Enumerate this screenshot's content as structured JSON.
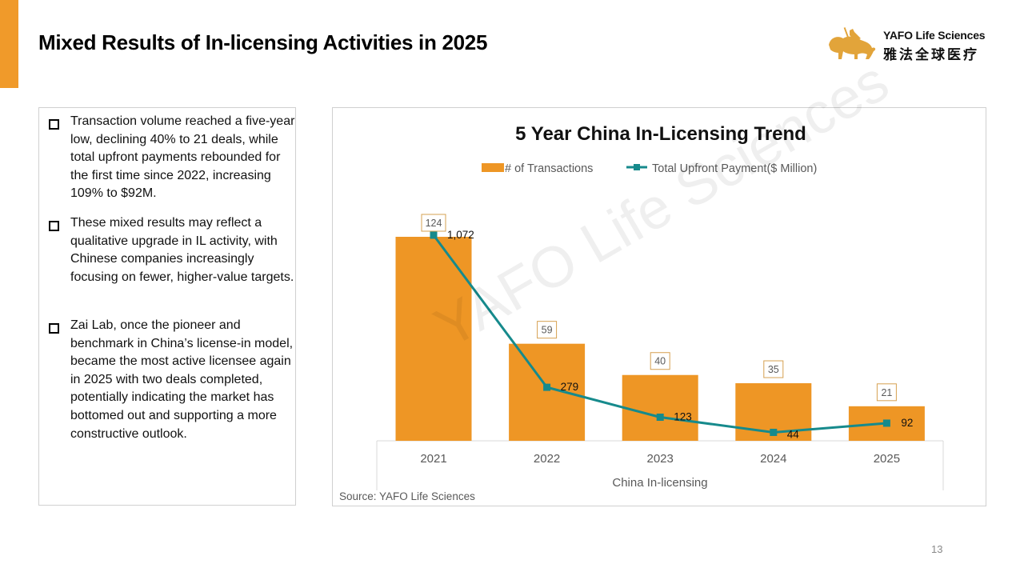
{
  "header": {
    "title": "Mixed Results of In-licensing Activities in 2025",
    "accent_color": "#F09A2A"
  },
  "logo": {
    "icon": "lion-rider-icon",
    "name_en": "YAFO Life Sciences",
    "name_cn": "雅法全球医疗"
  },
  "bullets": [
    {
      "icon": "square-bullet-icon",
      "text": "Transaction volume reached a five-year low, declining 40% to 21 deals, while total upfront payments rebounded for the first time since 2022, increasing 109% to $92M."
    },
    {
      "icon": "square-bullet-icon",
      "text": "These mixed results may reflect a qualitative upgrade in IL activity, with Chinese companies increasingly focusing on fewer, higher-value targets."
    },
    {
      "icon": "square-bullet-icon",
      "text": "Zai Lab, once the pioneer and benchmark in China’s license-in model, became the most active licensee again in 2025 with two deals completed, potentially indicating the market has bottomed out and supporting a more constructive outlook."
    }
  ],
  "chart_data": {
    "type": "bar",
    "title": "5 Year China In-Licensing Trend",
    "categories": [
      "2021",
      "2022",
      "2023",
      "2024",
      "2025"
    ],
    "xlabel": "China In-licensing",
    "ylabel": "",
    "series": [
      {
        "name": "# of Transactions",
        "type": "bar",
        "color": "#EE9625",
        "values": [
          124,
          59,
          40,
          35,
          21
        ],
        "labels": [
          "124",
          "59",
          "40",
          "35",
          "21"
        ]
      },
      {
        "name": "Total Upfront Payment($ Million)",
        "type": "line",
        "color": "#168A8C",
        "marker": "square",
        "values": [
          1072,
          279,
          123,
          44,
          92
        ],
        "labels": [
          "1,072",
          "279",
          "123",
          "44",
          "92"
        ]
      }
    ],
    "legend_position": "top",
    "grid": false,
    "axes_visible": false,
    "source": "Source: YAFO Life Sciences",
    "watermark": "YAFO Life Sciences"
  },
  "footer": {
    "page_number": "13"
  }
}
